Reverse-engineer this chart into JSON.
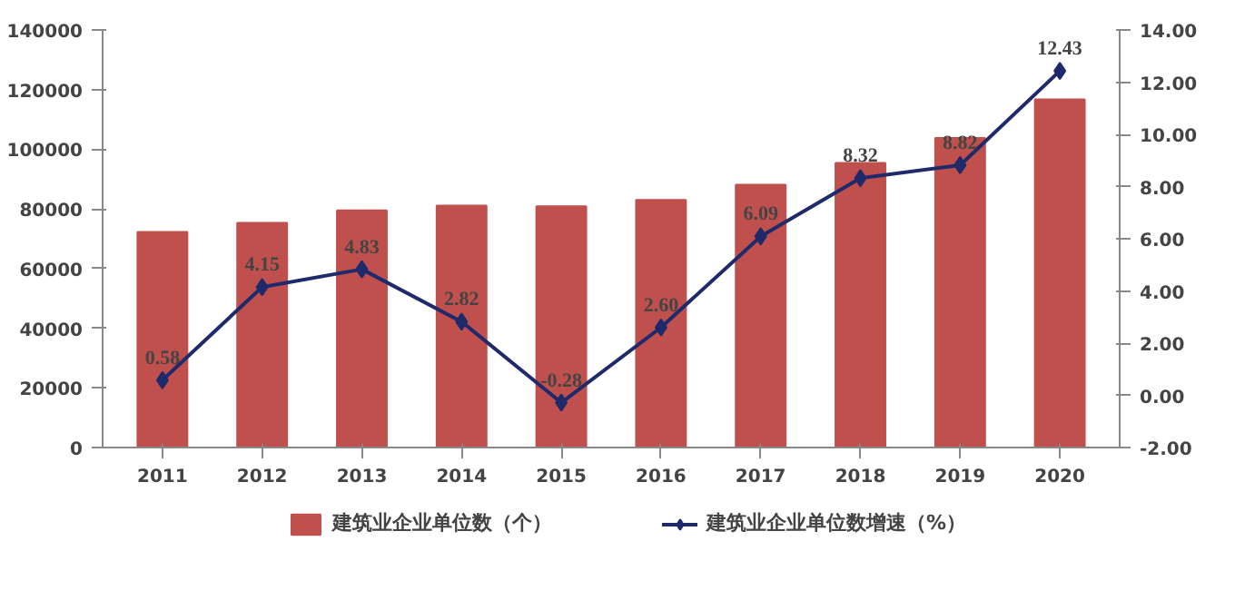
{
  "chart_data": {
    "type": "bar",
    "categories": [
      "2011",
      "2012",
      "2013",
      "2014",
      "2015",
      "2016",
      "2017",
      "2018",
      "2019",
      "2020"
    ],
    "series": [
      {
        "name": "建筑业企业单位数（个）",
        "color": "#c0504d",
        "values": [
          72300,
          75300,
          79500,
          81100,
          80900,
          83000,
          88100,
          95400,
          103800,
          116700
        ]
      },
      {
        "name": "建筑业企业单位数增速（%）",
        "type": "line",
        "axis": "y2",
        "color": "#1f2a6b",
        "marker": "diamond",
        "values": [
          0.58,
          4.15,
          4.83,
          2.82,
          -0.28,
          2.6,
          6.09,
          8.32,
          8.82,
          12.43
        ],
        "value_labels": [
          "0.58",
          "4.15",
          "4.83",
          "2.82",
          "-0.28",
          "2.60",
          "6.09",
          "8.32",
          "8.82",
          "12.43"
        ]
      }
    ],
    "ylim": [
      0,
      140000
    ],
    "yticks": [
      0,
      20000,
      40000,
      60000,
      80000,
      100000,
      120000,
      140000
    ],
    "y2lim": [
      -2,
      14
    ],
    "y2ticks": [
      {
        "value": -2,
        "label": "-2.00"
      },
      {
        "value": 0,
        "label": "0.00"
      },
      {
        "value": 2,
        "label": "2.00"
      },
      {
        "value": 4,
        "label": "4.00"
      },
      {
        "value": 6,
        "label": "6.00"
      },
      {
        "value": 8,
        "label": "8.00"
      },
      {
        "value": 10,
        "label": "10.00"
      },
      {
        "value": 12,
        "label": "12.00"
      },
      {
        "value": 14,
        "label": "14.00"
      }
    ],
    "legend": "bottom",
    "grid": false
  }
}
